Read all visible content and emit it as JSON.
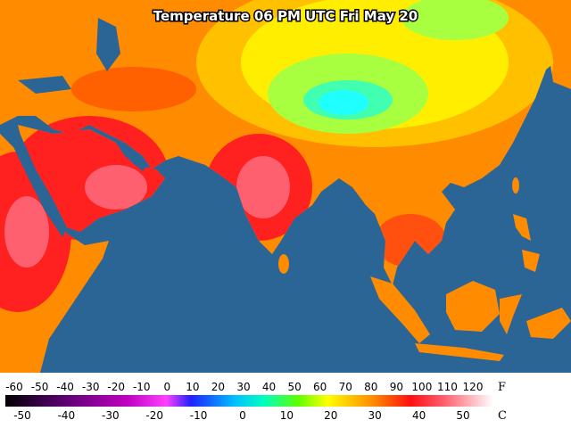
{
  "title": "Temperature 06 PM UTC Fri May 20",
  "scale": {
    "f_unit": "F",
    "c_unit": "C",
    "f_ticks": [
      -60,
      -50,
      -40,
      -30,
      -20,
      -10,
      0,
      10,
      20,
      30,
      40,
      50,
      60,
      70,
      80,
      90,
      100,
      110,
      120
    ],
    "c_ticks": [
      -50,
      -40,
      -30,
      -20,
      -10,
      0,
      10,
      20,
      30,
      40,
      50
    ]
  }
}
